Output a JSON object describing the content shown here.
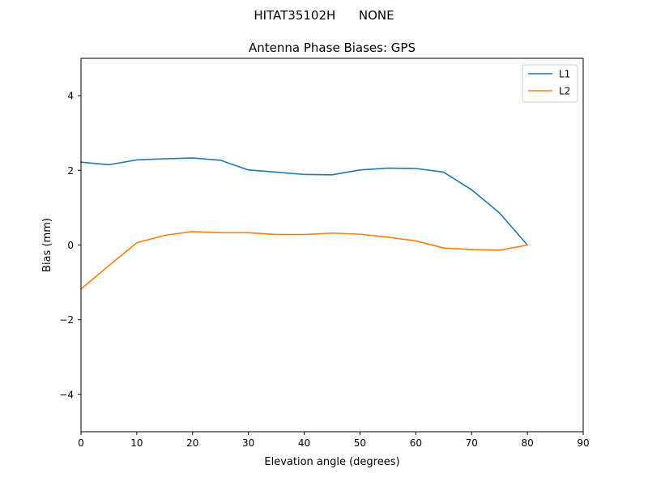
{
  "figure": {
    "suptitle": "HITAT35102H      NONE"
  },
  "chart_data": {
    "type": "line",
    "title": "Antenna Phase Biases: GPS",
    "xlabel": "Elevation angle (degrees)",
    "ylabel": "Bias (mm)",
    "xlim": [
      0,
      90
    ],
    "ylim": [
      -5,
      5
    ],
    "xticks": [
      0,
      10,
      20,
      30,
      40,
      50,
      60,
      70,
      80,
      90
    ],
    "yticks": [
      -4,
      -2,
      0,
      2,
      4
    ],
    "ytick_labels": [
      "−4",
      "−2",
      "0",
      "2",
      "4"
    ],
    "grid": false,
    "legend_position": "top-right",
    "x": [
      0,
      5,
      10,
      15,
      20,
      25,
      30,
      35,
      40,
      45,
      50,
      55,
      60,
      65,
      70,
      75,
      80
    ],
    "series": [
      {
        "name": "L1",
        "color": "#1f77b4",
        "values": [
          2.22,
          2.15,
          2.28,
          2.31,
          2.33,
          2.27,
          2.01,
          1.95,
          1.89,
          1.88,
          2.01,
          2.06,
          2.05,
          1.95,
          1.48,
          0.86,
          0.0
        ]
      },
      {
        "name": "L2",
        "color": "#ff7f0e",
        "values": [
          -1.18,
          -0.55,
          0.06,
          0.26,
          0.36,
          0.33,
          0.33,
          0.28,
          0.28,
          0.32,
          0.29,
          0.21,
          0.11,
          -0.08,
          -0.12,
          -0.14,
          0.0
        ]
      }
    ]
  }
}
